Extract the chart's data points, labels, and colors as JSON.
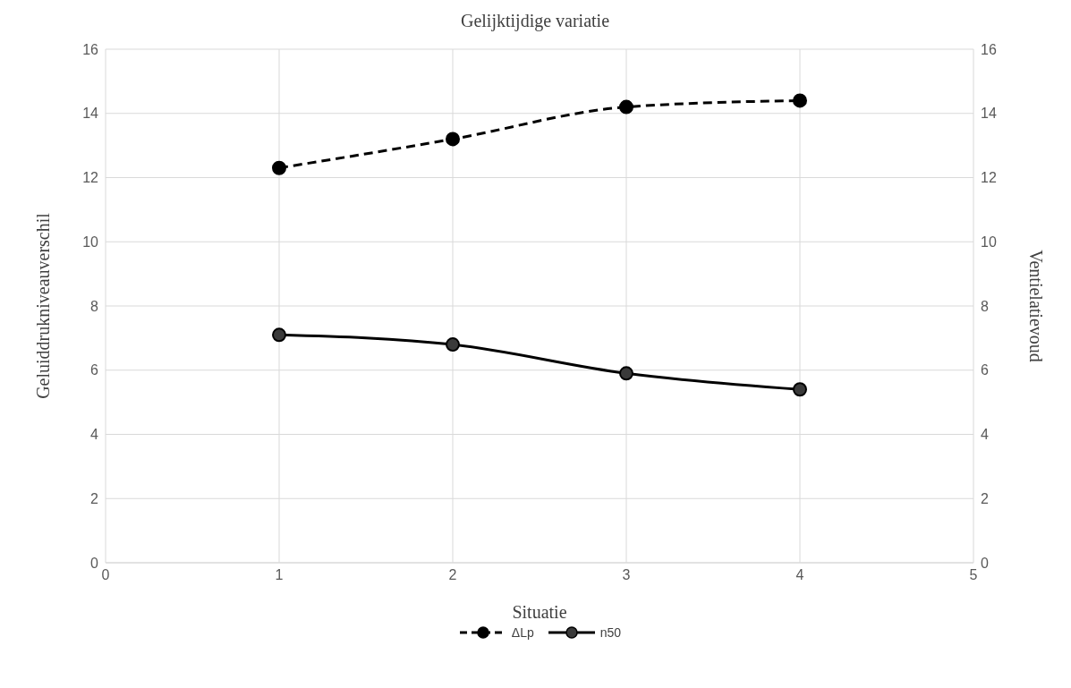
{
  "chart_data": {
    "type": "line",
    "title": "Gelijktijdige variatie",
    "xlabel": "Situatie",
    "ylabel": "Geluiddrukniveauverschil",
    "y2label": "Ventielatievoud",
    "x": [
      1,
      2,
      3,
      4
    ],
    "series": [
      {
        "name": "ΔLp",
        "color": "#000000",
        "values": [
          12.3,
          13.2,
          14.2,
          14.4
        ],
        "line_style": "dashed"
      },
      {
        "name": "n50",
        "color": "#000000",
        "values": [
          7.1,
          6.8,
          5.9,
          5.4
        ],
        "line_style": "solid",
        "axis": "y2"
      }
    ],
    "xlim": [
      0,
      5
    ],
    "xticks": [
      0,
      1,
      2,
      3,
      4,
      5
    ],
    "ylim": [
      0,
      16
    ],
    "yticks": [
      0,
      2,
      4,
      6,
      8,
      10,
      12,
      14,
      16
    ],
    "y2lim": [
      0,
      16
    ],
    "y2ticks": [
      0,
      2,
      4,
      6,
      8,
      10,
      12,
      14,
      16
    ],
    "grid": true,
    "legend": "bottom",
    "marker": "circle"
  }
}
